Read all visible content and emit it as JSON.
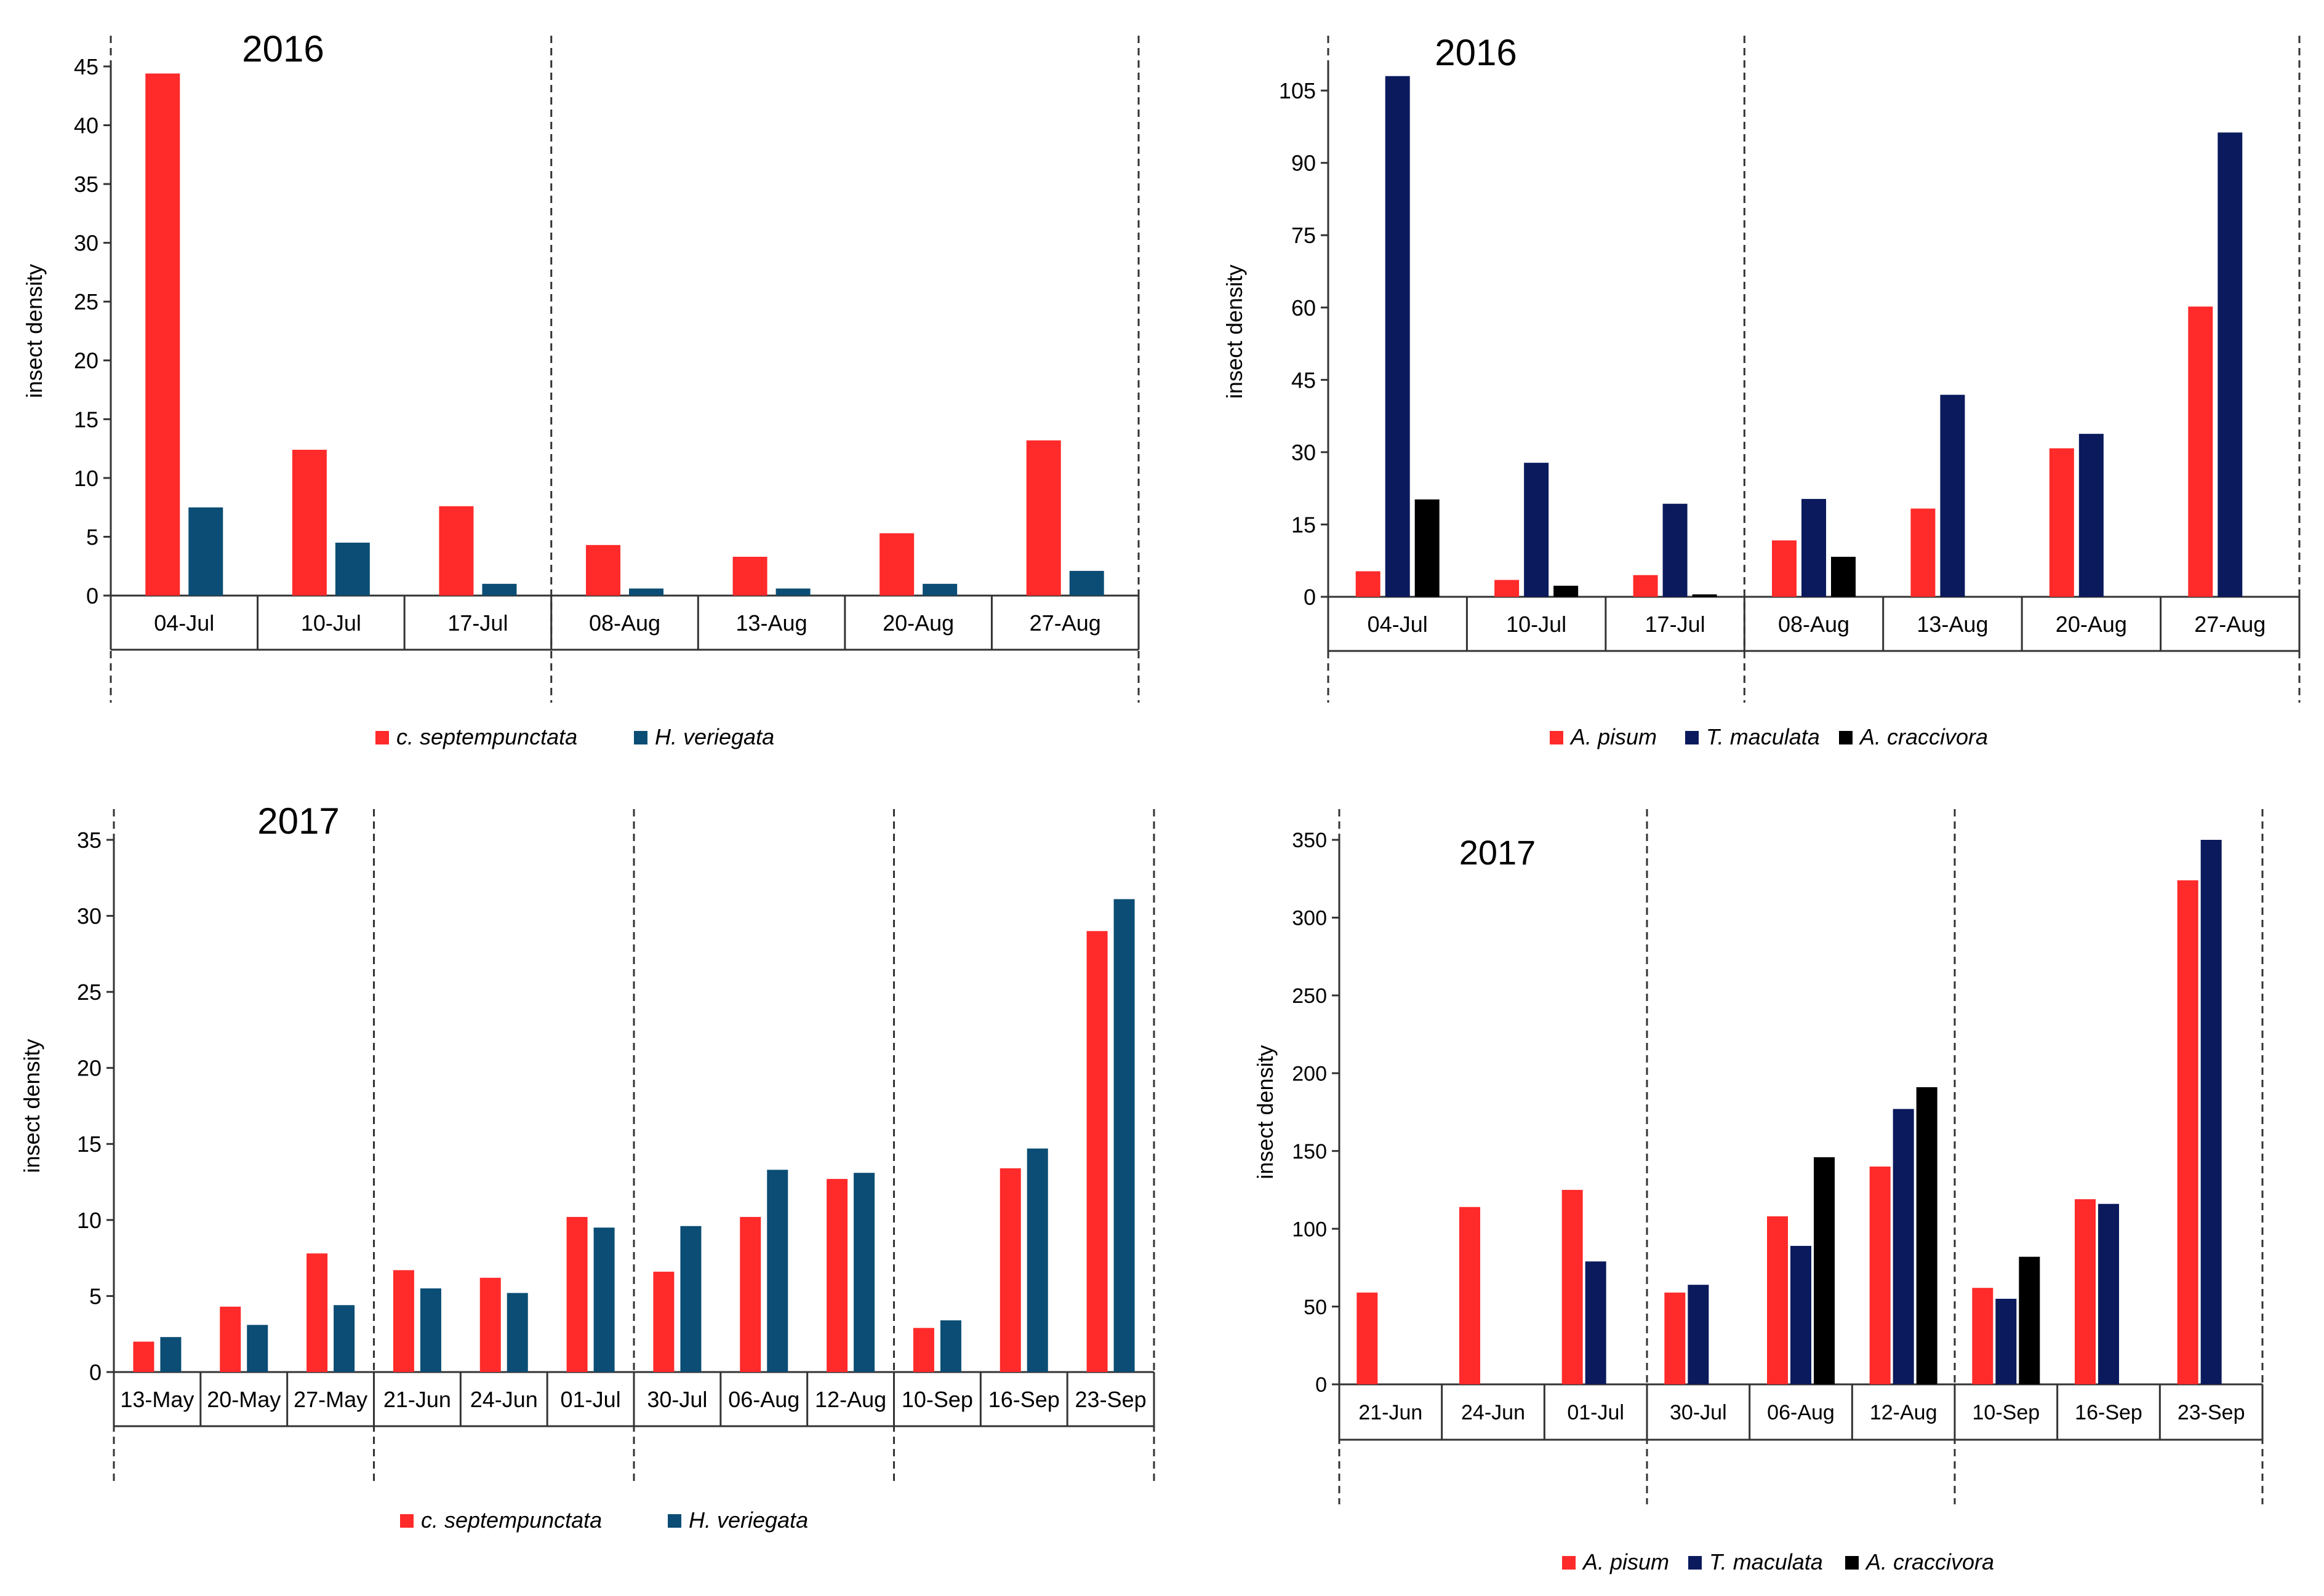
{
  "colors": {
    "red": "#ff2a2a",
    "teal": "#0b4d74",
    "navy": "#0a1a5c",
    "black": "#000000",
    "axis": "#333333"
  },
  "chart_data": [
    {
      "type": "bar",
      "title": "2016",
      "ylabel": "insect density",
      "ylim": [
        0,
        45
      ],
      "yticks": [
        0,
        5,
        10,
        15,
        20,
        25,
        30,
        35,
        40,
        45
      ],
      "categories": [
        "04-Jul",
        "10-Jul",
        "17-Jul",
        "08-Aug",
        "13-Aug",
        "20-Aug",
        "27-Aug"
      ],
      "group_breaks": [
        0,
        3,
        7
      ],
      "series": [
        {
          "name": "c. septempunctata",
          "color": "#ff2a2a",
          "values": [
            44.4,
            12.4,
            7.6,
            4.3,
            3.3,
            5.3,
            13.2
          ]
        },
        {
          "name": "H. veriegata",
          "color": "#0b4d74",
          "values": [
            7.5,
            4.5,
            1.0,
            0.6,
            0.6,
            1.0,
            2.1
          ]
        }
      ]
    },
    {
      "type": "bar",
      "title": "2016",
      "ylabel": "insect density",
      "ylim": [
        0,
        110
      ],
      "yticks": [
        0,
        15,
        30,
        45,
        60,
        75,
        90,
        105
      ],
      "categories": [
        "04-Jul",
        "10-Jul",
        "17-Jul",
        "08-Aug",
        "13-Aug",
        "20-Aug",
        "27-Aug"
      ],
      "group_breaks": [
        0,
        3,
        7
      ],
      "series": [
        {
          "name": "A. pisum",
          "color": "#ff2a2a",
          "values": [
            5.3,
            3.5,
            4.5,
            11.7,
            18.3,
            30.8,
            60.2
          ]
        },
        {
          "name": "T. maculata",
          "color": "#0a1a5c",
          "values": [
            108.0,
            27.8,
            19.3,
            20.3,
            41.9,
            33.8,
            96.3
          ]
        },
        {
          "name": "A. craccivora",
          "color": "#000000",
          "values": [
            20.2,
            2.3,
            0.5,
            8.3,
            0,
            0,
            0
          ]
        }
      ]
    },
    {
      "type": "bar",
      "title": "2017",
      "ylabel": "insect density",
      "ylim": [
        0,
        35
      ],
      "yticks": [
        0,
        5,
        10,
        15,
        20,
        25,
        30,
        35
      ],
      "categories": [
        "13-May",
        "20-May",
        "27-May",
        "21-Jun",
        "24-Jun",
        "01-Jul",
        "30-Jul",
        "06-Aug",
        "12-Aug",
        "10-Sep",
        "16-Sep",
        "23-Sep"
      ],
      "group_breaks": [
        0,
        3,
        6,
        9,
        12
      ],
      "series": [
        {
          "name": "c. septempunctata",
          "color": "#ff2a2a",
          "values": [
            2.0,
            4.3,
            7.8,
            6.7,
            6.2,
            10.2,
            6.6,
            10.2,
            12.7,
            2.9,
            13.4,
            29.0
          ]
        },
        {
          "name": "H. veriegata",
          "color": "#0b4d74",
          "values": [
            2.3,
            3.1,
            4.4,
            5.5,
            5.2,
            9.5,
            9.6,
            13.3,
            13.1,
            3.4,
            14.7,
            31.1
          ]
        }
      ]
    },
    {
      "type": "bar",
      "title": "2017",
      "ylabel": "insect density",
      "ylim": [
        0,
        350
      ],
      "yticks": [
        0,
        50,
        100,
        150,
        200,
        250,
        300,
        350
      ],
      "categories": [
        "21-Jun",
        "24-Jun",
        "01-Jul",
        "30-Jul",
        "06-Aug",
        "12-Aug",
        "10-Sep",
        "16-Sep",
        "23-Sep"
      ],
      "group_breaks": [
        0,
        3,
        6,
        9
      ],
      "series": [
        {
          "name": "A. pisum",
          "color": "#ff2a2a",
          "values": [
            59,
            114,
            125,
            59,
            108,
            140,
            62,
            119,
            324
          ]
        },
        {
          "name": "T. maculata",
          "color": "#0a1a5c",
          "values": [
            0,
            0,
            79,
            64,
            89,
            177,
            55,
            116,
            350
          ]
        },
        {
          "name": "A. craccivora",
          "color": "#000000",
          "values": [
            0,
            0,
            0,
            0,
            146,
            191,
            82,
            0,
            0
          ]
        }
      ]
    }
  ]
}
